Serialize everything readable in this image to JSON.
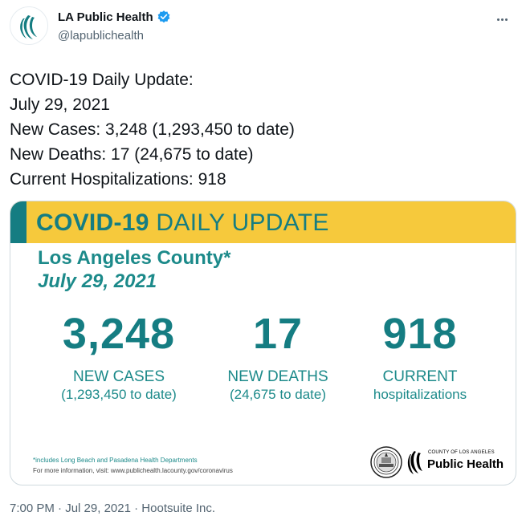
{
  "account": {
    "display_name": "LA Public Health",
    "handle": "@lapublichealth",
    "verified": true,
    "avatar_icon": "la-public-health-logo-icon"
  },
  "tweet": {
    "lines": [
      "COVID-19 Daily Update:",
      "July 29, 2021",
      "New Cases: 3,248 (1,293,450 to date)",
      "New Deaths: 17 (24,675 to date)",
      "Current Hospitalizations: 918"
    ]
  },
  "card": {
    "banner_bold": "COVID-19",
    "banner_rest": " DAILY UPDATE",
    "county": "Los Angeles County*",
    "date": "July 29, 2021",
    "stats": [
      {
        "value": "3,248",
        "label": "NEW CASES",
        "sub": "(1,293,450 to date)"
      },
      {
        "value": "17",
        "label": "NEW DEATHS",
        "sub": "(24,675 to date)"
      },
      {
        "value": "918",
        "label": "CURRENT",
        "sub": "hospitalizations"
      }
    ],
    "footnote": "*includes Long Beach and Pasadena Health Departments",
    "more_info": "For more information, visit: www.publichealth.lacounty.gov/coronavirus",
    "logo_small": "COUNTY OF LOS ANGELES",
    "logo_big": "Public Health",
    "colors": {
      "teal": "#157d82",
      "yellow": "#f6c93c"
    }
  },
  "meta": {
    "time": "7:00 PM",
    "separator": " · ",
    "date": "Jul 29, 2021",
    "source": "Hootsuite Inc."
  }
}
